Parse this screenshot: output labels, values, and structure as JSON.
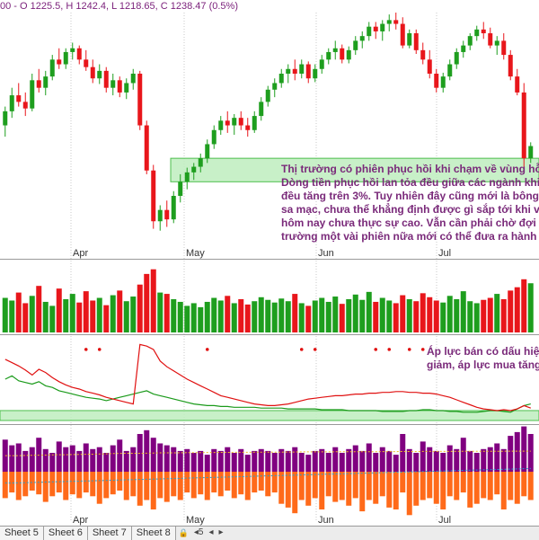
{
  "header": {
    "ohlc_text": "00 -  O 1225.5, H 1242.4, L 1218.65, C 1238.47  (0.5%)"
  },
  "colors": {
    "up": "#1e9e1e",
    "down": "#e8161b",
    "zone_fill": "#bfeebf",
    "zone_stroke": "#2fb52f",
    "note": "#7a2a7a",
    "purple": "#800080",
    "orange": "#ff6a1a",
    "grid": "#c8c8c8"
  },
  "annotations": {
    "price_note": [
      "Thị trường có phiên phục hồi khi chạm về vùng hỗ",
      "Dòng tiền phục hồi lan tỏa đều giữa các ngành khi",
      "đều tăng trên 3%. Tuy nhiên đây cũng mới là bông",
      "sa mạc, chưa thể khẳng định được gì sắp tới khi v",
      "hôm nay chưa thực sự cao. Vẫn cần phải chờ đợi",
      "trường một vài phiên nữa mới có thể đưa ra hành"
    ],
    "flow_note": [
      "Áp lực bán có dấu hiệ",
      "giảm, áp lực mua tăng"
    ]
  },
  "sheet_tabs": [
    "Sheet 5",
    "Sheet 6",
    "Sheet 7",
    "Sheet 8"
  ],
  "tab_controls": {
    "lock": "🔒",
    "prev": "◂5",
    "first": "◂",
    "next": "▸"
  },
  "chart_data": {
    "type": "candlestick",
    "months": [
      "Apr",
      "May",
      "Jun",
      "Jul"
    ],
    "price_range": [
      1040,
      1300
    ],
    "support_zone": [
      1120,
      1145
    ],
    "candles": [
      [
        1180,
        1200,
        1168,
        1195
      ],
      [
        1195,
        1220,
        1188,
        1212
      ],
      [
        1212,
        1225,
        1200,
        1205
      ],
      [
        1205,
        1215,
        1190,
        1198
      ],
      [
        1198,
        1235,
        1195,
        1228
      ],
      [
        1228,
        1240,
        1215,
        1220
      ],
      [
        1220,
        1238,
        1212,
        1232
      ],
      [
        1232,
        1255,
        1228,
        1250
      ],
      [
        1250,
        1262,
        1240,
        1245
      ],
      [
        1245,
        1262,
        1240,
        1258
      ],
      [
        1258,
        1268,
        1250,
        1262
      ],
      [
        1262,
        1265,
        1245,
        1250
      ],
      [
        1250,
        1260,
        1238,
        1242
      ],
      [
        1242,
        1250,
        1225,
        1230
      ],
      [
        1230,
        1245,
        1224,
        1238
      ],
      [
        1238,
        1242,
        1215,
        1220
      ],
      [
        1220,
        1235,
        1212,
        1228
      ],
      [
        1228,
        1232,
        1210,
        1215
      ],
      [
        1215,
        1230,
        1208,
        1225
      ],
      [
        1225,
        1240,
        1218,
        1235
      ],
      [
        1235,
        1238,
        1175,
        1180
      ],
      [
        1180,
        1185,
        1128,
        1132
      ],
      [
        1132,
        1138,
        1070,
        1078
      ],
      [
        1078,
        1095,
        1068,
        1090
      ],
      [
        1090,
        1100,
        1072,
        1080
      ],
      [
        1080,
        1110,
        1076,
        1105
      ],
      [
        1105,
        1128,
        1098,
        1120
      ],
      [
        1120,
        1135,
        1112,
        1130
      ],
      [
        1130,
        1140,
        1122,
        1136
      ],
      [
        1136,
        1150,
        1130,
        1145
      ],
      [
        1145,
        1165,
        1140,
        1160
      ],
      [
        1160,
        1180,
        1155,
        1175
      ],
      [
        1175,
        1190,
        1170,
        1185
      ],
      [
        1185,
        1195,
        1172,
        1180
      ],
      [
        1180,
        1192,
        1170,
        1188
      ],
      [
        1188,
        1195,
        1175,
        1180
      ],
      [
        1180,
        1188,
        1168,
        1175
      ],
      [
        1175,
        1195,
        1172,
        1190
      ],
      [
        1190,
        1210,
        1185,
        1205
      ],
      [
        1205,
        1222,
        1200,
        1218
      ],
      [
        1218,
        1230,
        1210,
        1225
      ],
      [
        1225,
        1240,
        1220,
        1235
      ],
      [
        1235,
        1245,
        1225,
        1240
      ],
      [
        1240,
        1250,
        1228,
        1235
      ],
      [
        1235,
        1250,
        1230,
        1245
      ],
      [
        1245,
        1248,
        1225,
        1230
      ],
      [
        1230,
        1245,
        1226,
        1240
      ],
      [
        1240,
        1255,
        1235,
        1250
      ],
      [
        1250,
        1262,
        1245,
        1258
      ],
      [
        1258,
        1270,
        1250,
        1262
      ],
      [
        1262,
        1266,
        1246,
        1250
      ],
      [
        1250,
        1264,
        1246,
        1260
      ],
      [
        1260,
        1275,
        1255,
        1270
      ],
      [
        1270,
        1280,
        1262,
        1275
      ],
      [
        1275,
        1290,
        1270,
        1285
      ],
      [
        1285,
        1290,
        1272,
        1280
      ],
      [
        1280,
        1292,
        1270,
        1288
      ],
      [
        1288,
        1298,
        1280,
        1292
      ],
      [
        1292,
        1300,
        1282,
        1288
      ],
      [
        1288,
        1295,
        1262,
        1265
      ],
      [
        1265,
        1282,
        1262,
        1278
      ],
      [
        1278,
        1282,
        1256,
        1260
      ],
      [
        1260,
        1268,
        1245,
        1250
      ],
      [
        1250,
        1260,
        1230,
        1235
      ],
      [
        1235,
        1240,
        1215,
        1220
      ],
      [
        1220,
        1236,
        1215,
        1232
      ],
      [
        1232,
        1250,
        1228,
        1245
      ],
      [
        1245,
        1262,
        1240,
        1258
      ],
      [
        1258,
        1270,
        1252,
        1265
      ],
      [
        1265,
        1278,
        1260,
        1275
      ],
      [
        1275,
        1286,
        1270,
        1282
      ],
      [
        1282,
        1290,
        1272,
        1278
      ],
      [
        1278,
        1284,
        1262,
        1265
      ],
      [
        1265,
        1275,
        1255,
        1270
      ],
      [
        1270,
        1278,
        1250,
        1255
      ],
      [
        1255,
        1260,
        1228,
        1232
      ],
      [
        1232,
        1240,
        1212,
        1215
      ],
      [
        1215,
        1225,
        1135,
        1145
      ],
      [
        1145,
        1162,
        1140,
        1158
      ]
    ],
    "volume": [
      52,
      48,
      60,
      44,
      55,
      70,
      46,
      40,
      66,
      50,
      58,
      45,
      62,
      48,
      52,
      41,
      56,
      63,
      47,
      54,
      72,
      88,
      95,
      60,
      58,
      50,
      46,
      40,
      44,
      38,
      46,
      52,
      48,
      55,
      44,
      50,
      42,
      47,
      53,
      49,
      45,
      51,
      47,
      58,
      44,
      40,
      48,
      52,
      46,
      54,
      43,
      50,
      57,
      49,
      61,
      46,
      52,
      48,
      44,
      56,
      50,
      47,
      59,
      53,
      48,
      45,
      55,
      50,
      62,
      47,
      44,
      49,
      52,
      58,
      50,
      63,
      68,
      80,
      74
    ],
    "flow_red": [
      74,
      70,
      66,
      61,
      55,
      62,
      58,
      52,
      47,
      43,
      40,
      38,
      35,
      33,
      31,
      28,
      26,
      24,
      22,
      20,
      92,
      90,
      86,
      72,
      65,
      60,
      55,
      50,
      46,
      42,
      38,
      34,
      30,
      28,
      26,
      24,
      22,
      20,
      19,
      18,
      18,
      19,
      20,
      22,
      24,
      26,
      27,
      28,
      29,
      30,
      30,
      31,
      32,
      32,
      33,
      33,
      34,
      34,
      35,
      35,
      34,
      34,
      33,
      33,
      32,
      30,
      28,
      25,
      22,
      19,
      16,
      14,
      13,
      12,
      13,
      12,
      14,
      18,
      15
    ],
    "flow_green": [
      50,
      54,
      48,
      46,
      44,
      47,
      42,
      40,
      36,
      34,
      32,
      30,
      28,
      27,
      26,
      24,
      26,
      28,
      30,
      32,
      34,
      36,
      32,
      30,
      28,
      26,
      24,
      22,
      20,
      19,
      18,
      18,
      17,
      17,
      16,
      16,
      16,
      16,
      15,
      15,
      15,
      15,
      14,
      14,
      14,
      14,
      14,
      13,
      13,
      13,
      13,
      12,
      12,
      12,
      12,
      12,
      11,
      11,
      11,
      11,
      12,
      12,
      13,
      13,
      12,
      12,
      11,
      11,
      10,
      10,
      10,
      11,
      12,
      12,
      11,
      10,
      14,
      18,
      20
    ],
    "flow_zone": [
      0,
      12
    ],
    "flow_dots": [
      12,
      14,
      30,
      44,
      46,
      55,
      57,
      60,
      62
    ],
    "pressure_up": [
      34,
      28,
      30,
      22,
      26,
      36,
      24,
      20,
      32,
      26,
      28,
      22,
      30,
      24,
      26,
      20,
      28,
      34,
      22,
      26,
      40,
      44,
      36,
      30,
      28,
      26,
      22,
      24,
      20,
      22,
      18,
      24,
      22,
      26,
      20,
      24,
      18,
      22,
      24,
      22,
      20,
      24,
      22,
      26,
      20,
      18,
      22,
      24,
      20,
      26,
      20,
      24,
      28,
      22,
      30,
      20,
      26,
      22,
      18,
      40,
      24,
      20,
      32,
      26,
      22,
      20,
      28,
      24,
      36,
      22,
      20,
      24,
      26,
      30,
      24,
      38,
      42,
      48,
      40
    ],
    "pressure_down": [
      28,
      22,
      30,
      26,
      20,
      24,
      32,
      26,
      22,
      30,
      24,
      28,
      22,
      26,
      34,
      28,
      24,
      20,
      30,
      26,
      36,
      30,
      40,
      28,
      32,
      26,
      30,
      22,
      28,
      24,
      30,
      22,
      26,
      20,
      28,
      24,
      30,
      22,
      20,
      26,
      22,
      34,
      38,
      44,
      30,
      36,
      28,
      40,
      26,
      32,
      30,
      36,
      28,
      42,
      30,
      34,
      26,
      38,
      40,
      22,
      46,
      36,
      30,
      28,
      34,
      40,
      26,
      30,
      22,
      38,
      34,
      28,
      30,
      24,
      40,
      30,
      34,
      26,
      30
    ],
    "pressure_ma_yellow": [
      17,
      17,
      17,
      17.2,
      17.4,
      17.5,
      17.6,
      17.8,
      18,
      18,
      18.2,
      18.3,
      18.5,
      18.6,
      18.8,
      19,
      19.2,
      19.4,
      19.5,
      19.5,
      19.5,
      19.6,
      19.8,
      20,
      20,
      20,
      20.1,
      20.2,
      20.2,
      20.3,
      20.4,
      20.4,
      20.5,
      20.5,
      20.6,
      20.6,
      20.6,
      20.7,
      20.7,
      20.8,
      20.8,
      20.8,
      20.9,
      20.9,
      21,
      21,
      21,
      21,
      21,
      21.1,
      21.1,
      21.1,
      21.2,
      21.2,
      21.2,
      21.2,
      21.3,
      21.3,
      21.3,
      21.4,
      21.4,
      21.4,
      21.5,
      21.5,
      21.5,
      21.5,
      21.5,
      21.6,
      21.6,
      21.6,
      21.6,
      21.7,
      21.7,
      21.7,
      21.7,
      21.8,
      21.8,
      21.8,
      21.8
    ],
    "pressure_ma_blue": [
      -12,
      -12,
      -11.8,
      -11.6,
      -11.4,
      -11.2,
      -11,
      -10.8,
      -10.6,
      -10.4,
      -10.2,
      -10,
      -9.8,
      -9.6,
      -9.4,
      -9.2,
      -9,
      -8.8,
      -8.6,
      -8.4,
      -8.2,
      -8,
      -7.8,
      -7.6,
      -7.4,
      -7.2,
      -7,
      -6.8,
      -6.6,
      -6.4,
      -6.2,
      -6,
      -5.8,
      -5.6,
      -5.4,
      -5.2,
      -5,
      -4.8,
      -4.6,
      -4.4,
      -4.2,
      -4,
      -3.8,
      -3.6,
      -3.4,
      -3.2,
      -3,
      -2.8,
      -2.6,
      -2.4,
      -2.2,
      -2,
      -1.8,
      -1.6,
      -1.4,
      -1.2,
      -1,
      -0.8,
      -0.6,
      -0.4,
      -0.2,
      0,
      0.2,
      0.4,
      0.6,
      0.8,
      1,
      1.2,
      1.4,
      1.6,
      1.8,
      2,
      2.2,
      2.4,
      2.6,
      2.8,
      3,
      3.2,
      3.4
    ]
  }
}
